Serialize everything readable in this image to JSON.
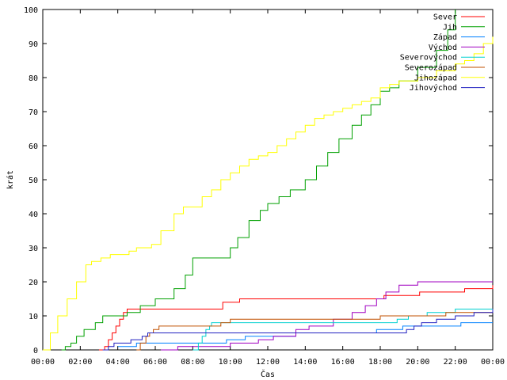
{
  "chart_data": {
    "type": "line",
    "title": "",
    "xlabel": "Čas",
    "ylabel": "krát",
    "xlim": [
      0,
      24
    ],
    "ylim": [
      0,
      100
    ],
    "x_tick_values": [
      0,
      2,
      4,
      6,
      8,
      10,
      12,
      14,
      16,
      18,
      20,
      22,
      24
    ],
    "x_ticks": [
      "00:00",
      "02:00",
      "04:00",
      "06:00",
      "08:00",
      "10:00",
      "12:00",
      "14:00",
      "16:00",
      "18:00",
      "20:00",
      "22:00",
      "00:00"
    ],
    "y_ticks": [
      0,
      10,
      20,
      30,
      40,
      50,
      60,
      70,
      80,
      90,
      100
    ],
    "grid": false,
    "legend_position": "top-right",
    "series": [
      {
        "name": "Sever",
        "color": "#ff0000",
        "x": [
          3.0,
          3.3,
          3.5,
          3.7,
          3.9,
          4.1,
          4.3,
          4.5,
          9.6,
          10.5,
          17.6,
          18.2,
          20.1,
          22.5,
          24.0
        ],
        "y": [
          0,
          1,
          3,
          5,
          7,
          9,
          11,
          12,
          14,
          15,
          15,
          16,
          17,
          18,
          19
        ]
      },
      {
        "name": "Jih",
        "color": "#00a000",
        "x": [
          1.0,
          1.2,
          1.5,
          1.8,
          2.2,
          2.8,
          3.2,
          4.5,
          5.2,
          6.0,
          7.0,
          7.6,
          8.0,
          9.5,
          10.0,
          10.4,
          11.0,
          11.6,
          12.0,
          12.6,
          13.2,
          14.0,
          14.6,
          15.2,
          15.8,
          16.5,
          17.0,
          17.5,
          18.0,
          18.5,
          19.0,
          20.0,
          21.0,
          21.6,
          22.0
        ],
        "y": [
          0,
          1,
          2,
          4,
          6,
          8,
          10,
          11,
          13,
          15,
          18,
          22,
          27,
          27,
          30,
          33,
          38,
          41,
          43,
          45,
          47,
          50,
          54,
          58,
          62,
          66,
          69,
          72,
          76,
          77,
          79,
          83,
          88,
          94,
          100
        ]
      },
      {
        "name": "Západ",
        "color": "#0080ff",
        "x": [
          4.0,
          5.0,
          8.7,
          9.8,
          10.8,
          12.0,
          13.5,
          14.5,
          17.8,
          19.2,
          20.0,
          20.7,
          22.3,
          24.0
        ],
        "y": [
          1,
          2,
          2,
          3,
          4,
          4,
          5,
          5,
          6,
          7,
          7,
          7,
          8,
          8
        ]
      },
      {
        "name": "Východ",
        "color": "#a000c0",
        "x": [
          6.3,
          7.2,
          8.3,
          10.0,
          11.5,
          12.3,
          13.5,
          14.2,
          15.5,
          16.5,
          17.2,
          17.8,
          18.3,
          19.0,
          20.0,
          24.0
        ],
        "y": [
          0,
          1,
          1,
          2,
          3,
          4,
          6,
          7,
          9,
          11,
          13,
          15,
          17,
          19,
          20,
          20
        ]
      },
      {
        "name": "Severovýchod",
        "color": "#00d0d0",
        "x": [
          8.0,
          8.3,
          8.5,
          8.7,
          8.9,
          9.0,
          18.3,
          18.9,
          19.5,
          20.5,
          22.0,
          23.0,
          24.0
        ],
        "y": [
          0,
          2,
          4,
          6,
          7,
          8,
          8,
          9,
          10,
          11,
          12,
          12,
          12
        ]
      },
      {
        "name": "Severozápad",
        "color": "#c05000",
        "x": [
          5.0,
          5.2,
          5.5,
          5.7,
          5.9,
          6.2,
          7.5,
          9.5,
          10.0,
          17.5,
          18.0,
          20.0,
          21.5,
          22.5,
          24.0
        ],
        "y": [
          0,
          2,
          4,
          5,
          6,
          7,
          7,
          8,
          9,
          9,
          10,
          10,
          11,
          11,
          11
        ]
      },
      {
        "name": "Jihozápad",
        "color": "#ffff00",
        "x": [
          0.0,
          0.4,
          0.8,
          1.3,
          1.8,
          2.3,
          2.6,
          3.1,
          3.6,
          4.3,
          4.6,
          5.0,
          5.8,
          6.3,
          7.0,
          7.5,
          8.0,
          8.5,
          9.0,
          9.5,
          10.0,
          10.5,
          11.0,
          11.5,
          12.0,
          12.5,
          13.0,
          13.5,
          14.0,
          14.5,
          15.0,
          15.5,
          16.0,
          16.5,
          17.0,
          17.5,
          18.0,
          18.5,
          19.0,
          20.0,
          21.0,
          22.0,
          22.5,
          23.0,
          23.5,
          24.0
        ],
        "y": [
          0,
          5,
          10,
          15,
          20,
          25,
          26,
          27,
          28,
          28,
          29,
          30,
          31,
          35,
          40,
          42,
          42,
          45,
          47,
          50,
          52,
          54,
          56,
          57,
          58,
          60,
          62,
          64,
          66,
          68,
          69,
          70,
          71,
          72,
          73,
          74,
          77,
          78,
          79,
          80,
          82,
          84,
          85,
          87,
          90,
          92
        ]
      },
      {
        "name": "Jihovýchod",
        "color": "#2020c0",
        "x": [
          3.2,
          3.5,
          3.8,
          4.2,
          4.7,
          5.0,
          5.3,
          5.6,
          6.0,
          19.0,
          19.4,
          19.8,
          20.2,
          21.0,
          22.0,
          23.0,
          24.0
        ],
        "y": [
          0,
          1,
          2,
          2,
          3,
          3,
          4,
          5,
          5,
          5,
          6,
          7,
          8,
          9,
          10,
          11,
          12
        ]
      }
    ]
  }
}
